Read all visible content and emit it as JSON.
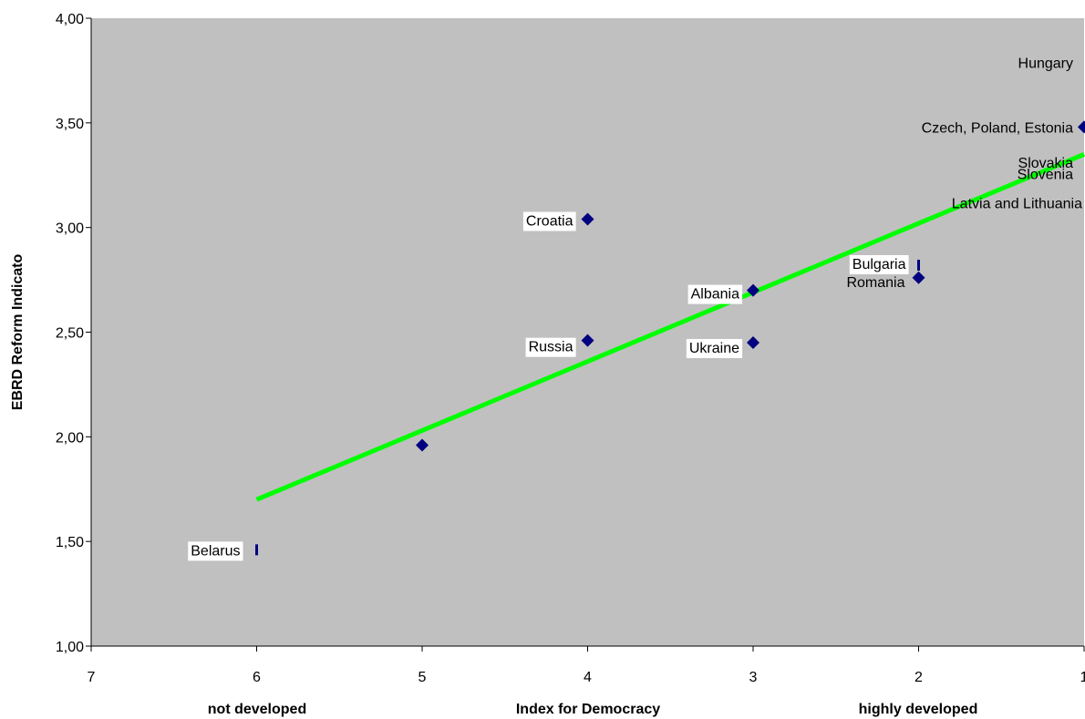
{
  "chart_data": {
    "type": "scatter",
    "title": "",
    "ylabel": "EBRD Reform Indicato",
    "xlabel": "Index for Democracy",
    "xlabel_left": "not developed",
    "xlabel_right": "highly developed",
    "xlim": [
      7,
      1
    ],
    "ylim": [
      1.0,
      4.0
    ],
    "x_reversed": true,
    "x_ticks": [
      "7",
      "6",
      "5",
      "4",
      "3",
      "2",
      "1"
    ],
    "y_ticks": [
      "1,00",
      "1,50",
      "2,00",
      "2,50",
      "3,00",
      "3,50",
      "4,00"
    ],
    "grid": false,
    "plot_background": "#c0c0c0",
    "marker_color": "#000080",
    "trendline_color": "#00ff00",
    "trendline": {
      "x": [
        6,
        1
      ],
      "y": [
        1.7,
        3.35
      ]
    },
    "points": [
      {
        "label": "Belarus",
        "x": 6,
        "y": 1.46
      },
      {
        "label": "",
        "x": 5,
        "y": 1.96
      },
      {
        "label": "Croatia",
        "x": 4,
        "y": 3.04
      },
      {
        "label": "Russia",
        "x": 4,
        "y": 2.46
      },
      {
        "label": "Albania",
        "x": 3,
        "y": 2.7
      },
      {
        "label": "Ukraine",
        "x": 3,
        "y": 2.45
      },
      {
        "label": "Bulgaria",
        "x": 2,
        "y": 2.82
      },
      {
        "label": "Romania",
        "x": 2,
        "y": 2.76
      },
      {
        "label": "Czech, Poland, Estonia",
        "x": 1,
        "y": 3.48
      },
      {
        "label": "Hungary",
        "x": 1,
        "y": 3.68
      },
      {
        "label": "Slovakia",
        "x": 1,
        "y": 3.3
      },
      {
        "label": "Slovenia",
        "x": 1,
        "y": 3.24
      },
      {
        "label": "Latvia and Lithuania",
        "x": 1,
        "y": 3.11
      }
    ]
  }
}
